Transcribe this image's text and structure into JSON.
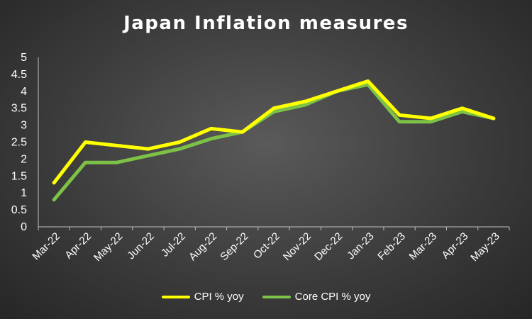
{
  "chart_data": {
    "type": "line",
    "title": "Japan Inflation measures",
    "categories": [
      "Mar-22",
      "Apr-22",
      "May-22",
      "Jun-22",
      "Jul-22",
      "Aug-22",
      "Sep-22",
      "Oct-22",
      "Nov-22",
      "Dec-22",
      "Jan-23",
      "Feb-23",
      "Mar-23",
      "Apr-23",
      "May-23"
    ],
    "y_ticks": [
      "0",
      "0.5",
      "1",
      "1.5",
      "2",
      "2.5",
      "3",
      "3.5",
      "4",
      "4.5",
      "5"
    ],
    "ylim": [
      0,
      5
    ],
    "grid": false,
    "legend_position": "bottom",
    "series": [
      {
        "name": "CPI % yoy",
        "color": "#ffff00",
        "values": [
          1.3,
          2.5,
          2.4,
          2.3,
          2.5,
          2.9,
          2.8,
          3.5,
          3.7,
          4.0,
          4.3,
          3.3,
          3.2,
          3.5,
          3.2
        ]
      },
      {
        "name": "Core CPI % yoy",
        "color": "#7dc246",
        "values": [
          0.8,
          1.9,
          1.9,
          2.1,
          2.3,
          2.6,
          2.8,
          3.4,
          3.6,
          4.0,
          4.2,
          3.1,
          3.1,
          3.4,
          3.2
        ]
      }
    ]
  }
}
